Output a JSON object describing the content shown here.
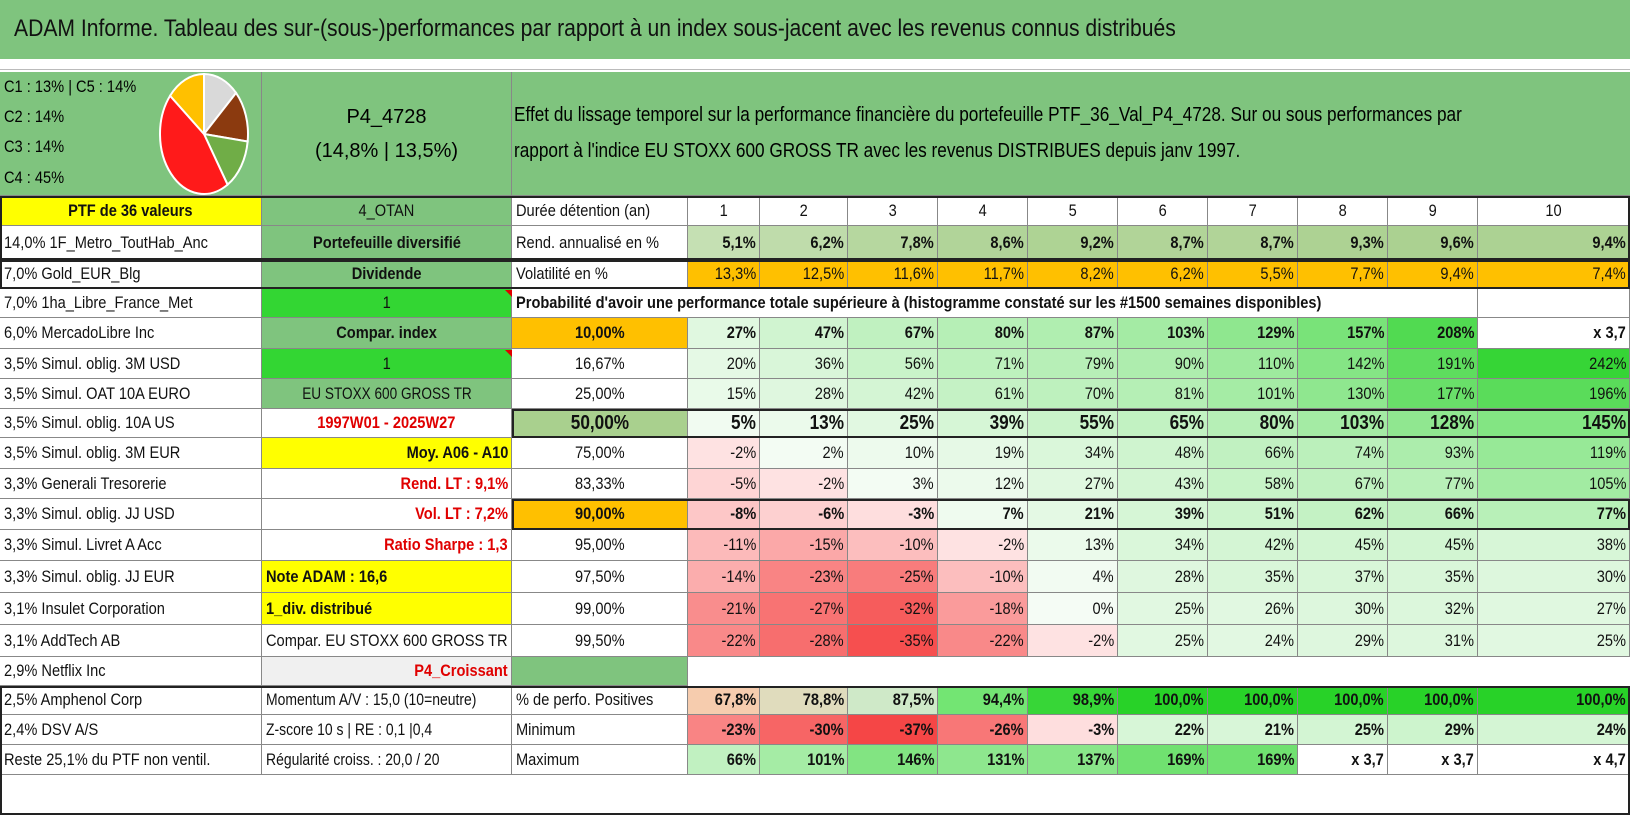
{
  "title": "ADAM Informe. Tableau des sur-(sous-)performances par rapport à un index sous-jacent avec les revenus connus distribués",
  "legend": {
    "lines": [
      "C1 : 13% | C5 : 14%",
      "C2 : 14%",
      "C3 : 14%",
      "C4 : 45%"
    ],
    "pie": [
      {
        "label": "C1",
        "value": 13,
        "color": "#d9d9d9"
      },
      {
        "label": "C2",
        "value": 14,
        "color": "#8b3a0f"
      },
      {
        "label": "C3",
        "value": 14,
        "color": "#70ad47"
      },
      {
        "label": "C4",
        "value": 45,
        "color": "#ff1a1a"
      },
      {
        "label": "C5",
        "value": 14,
        "color": "#ffc000"
      }
    ]
  },
  "portfolio": {
    "name": "P4_4728",
    "perf": "(14,8% | 13,5%)"
  },
  "description": {
    "line1": "Effet du lissage temporel sur la performance financière du portefeuille PTF_36_Val_P4_4728. Sur ou sous performances par",
    "line2": "rapport à l'indice EU STOXX 600 GROSS TR avec les revenus DISTRIBUES depuis janv 1997."
  },
  "colA": [
    "PTF de 36 valeurs",
    "14,0% 1F_Metro_ToutHab_Anc",
    "7,0% Gold_EUR_Blg",
    "7,0% 1ha_Libre_France_Met",
    "6,0% MercadoLibre Inc",
    "3,5% Simul. oblig. 3M USD",
    "3,5% Simul. OAT 10A EURO",
    "3,5% Simul. oblig. 10A US",
    "3,5% Simul. oblig. 3M EUR",
    "3,3% Generali Tresorerie",
    "3,3% Simul. oblig. JJ USD",
    "3,3% Simul. Livret A Acc",
    "3,3% Simul. oblig. JJ EUR",
    "3,1% Insulet Corporation",
    "3,1% AddTech AB",
    "2,9% Netflix Inc",
    "2,5% Amphenol Corp",
    "2,4% DSV A/S",
    "Reste 25,1% du PTF non ventil."
  ],
  "colB": [
    "4_OTAN",
    "Portefeuille diversifié",
    "Dividende",
    "1",
    "Compar. index",
    "1",
    "EU STOXX 600 GROSS TR",
    "1997W01 - 2025W27",
    "Moy. A06 - A10",
    "Rend. LT : 9,1%",
    "Vol. LT : 7,2%",
    "Ratio Sharpe : 1,3",
    "Note ADAM : 16,6",
    "1_div. distribué",
    "Compar. EU STOXX 600 GROSS TR",
    "P4_Croissant",
    "Momentum A/V : 15,0 (10=neutre)",
    "Z-score 10 s | RE : 0,1 |0,4",
    "Régularité croiss. : 20,0 / 20"
  ],
  "duration_label": "Durée détention (an)",
  "years": [
    "1",
    "2",
    "3",
    "4",
    "5",
    "6",
    "7",
    "8",
    "9",
    "10"
  ],
  "rend_label": "Rend. annualisé en %",
  "rend": [
    "5,1%",
    "6,2%",
    "7,8%",
    "8,6%",
    "9,2%",
    "8,7%",
    "8,7%",
    "9,3%",
    "9,6%",
    "9,4%"
  ],
  "vol_label": "Volatilité en %",
  "vol": [
    "13,3%",
    "12,5%",
    "11,6%",
    "11,7%",
    "8,2%",
    "6,2%",
    "5,5%",
    "7,7%",
    "9,4%",
    "7,4%"
  ],
  "prob_label": "Probabilité d'avoir une performance totale supérieure à (histogramme constaté sur les #1500 semaines disponibles)",
  "prob_rows": [
    {
      "q": "10,00%",
      "v": [
        "27%",
        "47%",
        "67%",
        "80%",
        "87%",
        "103%",
        "129%",
        "157%",
        "208%",
        "x 3,7"
      ]
    },
    {
      "q": "16,67%",
      "v": [
        "20%",
        "36%",
        "56%",
        "71%",
        "79%",
        "90%",
        "110%",
        "142%",
        "191%",
        "242%"
      ]
    },
    {
      "q": "25,00%",
      "v": [
        "15%",
        "28%",
        "42%",
        "61%",
        "70%",
        "81%",
        "101%",
        "130%",
        "177%",
        "196%"
      ]
    },
    {
      "q": "50,00%",
      "v": [
        "5%",
        "13%",
        "25%",
        "39%",
        "55%",
        "65%",
        "80%",
        "103%",
        "128%",
        "145%"
      ]
    },
    {
      "q": "75,00%",
      "v": [
        "-2%",
        "2%",
        "10%",
        "19%",
        "34%",
        "48%",
        "66%",
        "74%",
        "93%",
        "119%"
      ]
    },
    {
      "q": "83,33%",
      "v": [
        "-5%",
        "-2%",
        "3%",
        "12%",
        "27%",
        "43%",
        "58%",
        "67%",
        "77%",
        "105%"
      ]
    },
    {
      "q": "90,00%",
      "v": [
        "-8%",
        "-6%",
        "-3%",
        "7%",
        "21%",
        "39%",
        "51%",
        "62%",
        "66%",
        "77%"
      ]
    },
    {
      "q": "95,00%",
      "v": [
        "-11%",
        "-15%",
        "-10%",
        "-2%",
        "13%",
        "34%",
        "42%",
        "45%",
        "45%",
        "38%"
      ]
    },
    {
      "q": "97,50%",
      "v": [
        "-14%",
        "-23%",
        "-25%",
        "-10%",
        "4%",
        "28%",
        "35%",
        "37%",
        "35%",
        "30%"
      ]
    },
    {
      "q": "99,00%",
      "v": [
        "-21%",
        "-27%",
        "-32%",
        "-18%",
        "0%",
        "25%",
        "26%",
        "30%",
        "32%",
        "27%"
      ]
    },
    {
      "q": "99,50%",
      "v": [
        "-22%",
        "-28%",
        "-35%",
        "-22%",
        "-2%",
        "25%",
        "24%",
        "29%",
        "31%",
        "25%"
      ]
    }
  ],
  "pos_label": "% de perfo. Positives",
  "pos": [
    "67,8%",
    "78,8%",
    "87,5%",
    "94,4%",
    "98,9%",
    "100,0%",
    "100,0%",
    "100,0%",
    "100,0%",
    "100,0%"
  ],
  "min_label": "Minimum",
  "min": [
    "-23%",
    "-30%",
    "-37%",
    "-26%",
    "-3%",
    "22%",
    "21%",
    "25%",
    "29%",
    "24%"
  ],
  "max_label": "Maximum",
  "max": [
    "66%",
    "101%",
    "146%",
    "131%",
    "137%",
    "169%",
    "169%",
    "x 3,7",
    "x 3,7",
    "x 4,7"
  ]
}
